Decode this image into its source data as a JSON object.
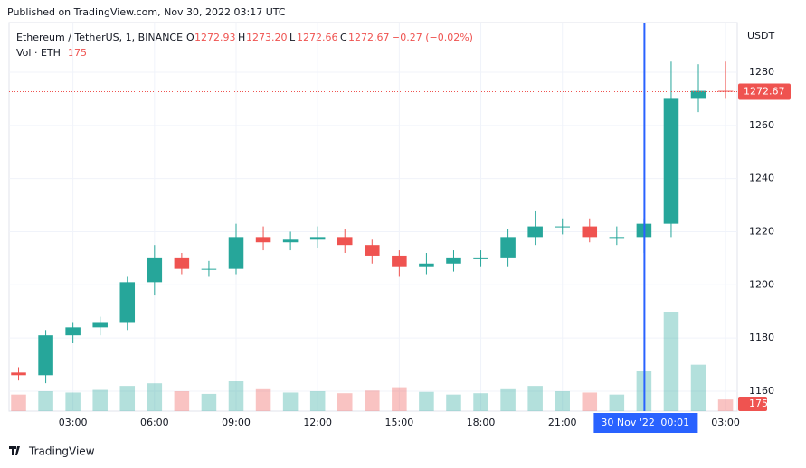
{
  "published": "Published on TradingView.com, Nov 30, 2022 03:17 UTC",
  "footer": "TradingView",
  "chart_data": {
    "type": "candlestick",
    "symbol": "Ethereum / TetherUS, 1, BINANCE",
    "legend": {
      "o_label": "O",
      "o": "1272.93",
      "h_label": "H",
      "h": "1273.20",
      "l_label": "L",
      "l": "1272.66",
      "c_label": "C",
      "c": "1272.67",
      "change": "−0.27 (−0.02%)"
    },
    "volume_label": "Vol · ETH",
    "price_unit": "USDT",
    "up_color": "#26a69a",
    "down_color": "#ef5350",
    "grid": true,
    "x": [
      1,
      2,
      3,
      4,
      5,
      6,
      7,
      8,
      9,
      10,
      11,
      12,
      13,
      14,
      15,
      16,
      17,
      18,
      19,
      20,
      21,
      22,
      23,
      24,
      25,
      26,
      27
    ],
    "open": [
      1167,
      1166,
      1181,
      1184,
      1186,
      1201,
      1210,
      1206,
      1206,
      1218,
      1216,
      1217,
      1218,
      1215,
      1211,
      1207,
      1208,
      1210,
      1210,
      1218,
      1222,
      1222,
      1218,
      1218,
      1223,
      1270,
      1273
    ],
    "high": [
      1169,
      1183,
      1186,
      1188,
      1203,
      1215,
      1212,
      1209,
      1223,
      1222,
      1220,
      1222,
      1221,
      1217,
      1213,
      1212,
      1213,
      1213,
      1221,
      1228,
      1225,
      1225,
      1222,
      1225,
      1284,
      1283,
      1284
    ],
    "low": [
      1164,
      1163,
      1178,
      1181,
      1183,
      1196,
      1204,
      1203,
      1204,
      1213,
      1213,
      1214,
      1212,
      1208,
      1203,
      1204,
      1205,
      1207,
      1207,
      1215,
      1219,
      1216,
      1215,
      1212,
      1218,
      1265,
      1270
    ],
    "close": [
      1166,
      1181,
      1184,
      1186,
      1201,
      1210,
      1206,
      1206,
      1218,
      1216,
      1217,
      1218,
      1215,
      1211,
      1207,
      1208,
      1210,
      1210,
      1218,
      1222,
      1222,
      1218,
      1218,
      1223,
      1270,
      1273,
      1272.67
    ],
    "volume": [
      250,
      300,
      280,
      320,
      380,
      420,
      300,
      260,
      450,
      330,
      280,
      300,
      270,
      310,
      360,
      290,
      250,
      270,
      330,
      380,
      300,
      280,
      250,
      600,
      1500,
      700,
      175
    ],
    "last_price_label": "1272.67",
    "xlim": [
      0.65,
      27.43
    ],
    "ylim": [
      1152.5,
      1298.7
    ],
    "xticks": [
      {
        "value": 3,
        "label": "03:00"
      },
      {
        "value": 6,
        "label": "06:00"
      },
      {
        "value": 9,
        "label": "09:00"
      },
      {
        "value": 12,
        "label": "12:00"
      },
      {
        "value": 15,
        "label": "15:00"
      },
      {
        "value": 18,
        "label": "18:00"
      },
      {
        "value": 21,
        "label": "21:00"
      },
      {
        "value": 27,
        "label": "03:00"
      }
    ],
    "yticks": [
      1160,
      1180,
      1200,
      1220,
      1240,
      1260,
      1280
    ],
    "crosshair": {
      "x": 24.0167,
      "date_label": "30 Nov '22",
      "time_label": "00:01",
      "color": "#2962ff"
    }
  }
}
